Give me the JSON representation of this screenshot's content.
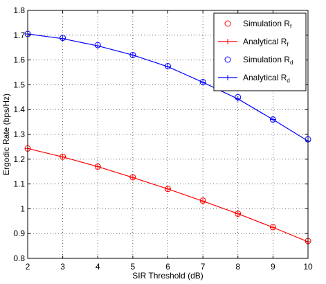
{
  "chart_data": {
    "type": "line",
    "xlabel": "SIR Threshold (dB)",
    "ylabel": "Ergodic Rate (bps/Hz)",
    "xlim": [
      2,
      10
    ],
    "ylim": [
      0.8,
      1.8
    ],
    "xticks": [
      2,
      3,
      4,
      5,
      6,
      7,
      8,
      9,
      10
    ],
    "yticks": [
      0.8,
      0.9,
      1.0,
      1.1,
      1.2,
      1.3,
      1.4,
      1.5,
      1.6,
      1.7,
      1.8
    ],
    "xtick_labels": [
      "2",
      "3",
      "4",
      "5",
      "6",
      "7",
      "8",
      "9",
      "10"
    ],
    "ytick_labels": [
      "0.8",
      "0.9",
      "1",
      "1.1",
      "1.2",
      "1.3",
      "1.4",
      "1.5",
      "1.6",
      "1.7",
      "1.8"
    ],
    "grid": true,
    "grid_style": "dotted",
    "legend_position": "top-right",
    "x": [
      2,
      3,
      4,
      5,
      6,
      7,
      8,
      9,
      10
    ],
    "series": [
      {
        "name_main": "Simulation R",
        "name_sub": "f",
        "kind": "marker",
        "marker": "circle",
        "color": "#ff0000",
        "values": [
          1.243,
          1.21,
          1.17,
          1.127,
          1.08,
          1.033,
          0.98,
          0.926,
          0.87
        ]
      },
      {
        "name_main": "Analytical R",
        "name_sub": "f",
        "kind": "line",
        "marker": "plus",
        "color": "#ff0000",
        "values": [
          1.243,
          1.209,
          1.17,
          1.126,
          1.08,
          1.031,
          0.98,
          0.925,
          0.867
        ]
      },
      {
        "name_main": "Simulation R",
        "name_sub": "d",
        "kind": "marker",
        "marker": "circle",
        "color": "#0000ff",
        "values": [
          1.705,
          1.689,
          1.66,
          1.62,
          1.575,
          1.511,
          1.45,
          1.36,
          1.28
        ]
      },
      {
        "name_main": "Analytical R",
        "name_sub": "d",
        "kind": "line",
        "marker": "plus",
        "color": "#0000ff",
        "values": [
          1.705,
          1.686,
          1.657,
          1.62,
          1.573,
          1.51,
          1.443,
          1.36,
          1.273
        ]
      }
    ]
  }
}
